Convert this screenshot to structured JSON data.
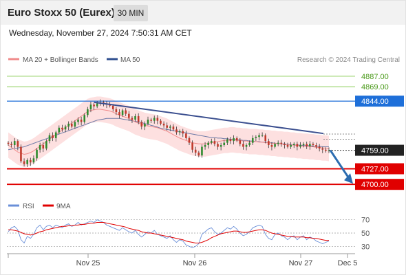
{
  "header": {
    "title": "Euro Stoxx 50 (Eurex)",
    "timeframe": "30 MIN",
    "datetime": "Wednesday, November 27, 2024 7:50:31 AM CET"
  },
  "legend": {
    "ma20": "MA 20 + Bollinger Bands",
    "ma50": "MA 50",
    "credit": "Research © 2024 Trading Central"
  },
  "colors": {
    "up": "#2e8b2e",
    "down": "#c0392b",
    "ma20": "#f08a8a",
    "bollinger_fill": "#fde0e0",
    "ma50": "#2f4f8f",
    "resistance_green": "#8ecf5a",
    "pivot_blue": "#1e6fd9",
    "support_red": "#e00000",
    "trendline": "#3b4f8f",
    "arrow": "#2b6cb0",
    "rsi": "#6a8fd8",
    "rsi_ma": "#e00000"
  },
  "chart_data": [
    {
      "type": "candlestick",
      "title": "",
      "x_ticks": [
        "Nov 25",
        "Nov 26",
        "Nov 27",
        "Dec 5"
      ],
      "ylim": [
        4680,
        4900
      ],
      "last_price": 4759.0,
      "levels": [
        {
          "label": "4887.00",
          "value": 4887.0,
          "kind": "resistance"
        },
        {
          "label": "4869.00",
          "value": 4869.0,
          "kind": "resistance"
        },
        {
          "label": "4844.00",
          "value": 4844.0,
          "kind": "pivot"
        },
        {
          "label": "4727.00",
          "value": 4727.0,
          "kind": "support"
        },
        {
          "label": "4700.00",
          "value": 4700.0,
          "kind": "support"
        }
      ],
      "last_label": "4759.00",
      "series": [
        {
          "name": "MA 20 + Bollinger Bands"
        },
        {
          "name": "MA 50"
        }
      ],
      "close": [
        4770,
        4768,
        4775,
        4765,
        4740,
        4735,
        4742,
        4738,
        4745,
        4760,
        4768,
        4762,
        4775,
        4785,
        4780,
        4790,
        4798,
        4795,
        4800,
        4805,
        4800,
        4808,
        4812,
        4808,
        4820,
        4830,
        4838,
        4835,
        4840,
        4842,
        4840,
        4838,
        4836,
        4830,
        4825,
        4820,
        4828,
        4822,
        4815,
        4812,
        4818,
        4808,
        4800,
        4805,
        4812,
        4810,
        4815,
        4810,
        4805,
        4802,
        4798,
        4800,
        4795,
        4790,
        4792,
        4788,
        4780,
        4772,
        4760,
        4755,
        4750,
        4765,
        4768,
        4772,
        4775,
        4770,
        4765,
        4768,
        4772,
        4778,
        4775,
        4780,
        4776,
        4770,
        4765,
        4768,
        4772,
        4780,
        4782,
        4785,
        4785,
        4775,
        4768,
        4765,
        4770,
        4772,
        4770,
        4768,
        4765,
        4768,
        4770,
        4765,
        4768,
        4770,
        4766,
        4770,
        4768,
        4765,
        4762,
        4760,
        4758,
        4759
      ],
      "ma20": [
        4768,
        4764,
        4760,
        4756,
        4754,
        4752,
        4753,
        4755,
        4758,
        4762,
        4766,
        4770,
        4774,
        4778,
        4782,
        4786,
        4790,
        4794,
        4798,
        4802,
        4806,
        4810,
        4814,
        4818,
        4822,
        4826,
        4828,
        4829,
        4830,
        4830,
        4829,
        4828,
        4827,
        4825,
        4822,
        4820,
        4818,
        4816,
        4814,
        4811,
        4808,
        4806,
        4804,
        4802,
        4801,
        4800,
        4799,
        4798,
        4796,
        4794,
        4792,
        4789,
        4786,
        4783,
        4780,
        4778,
        4776,
        4774,
        4772,
        4771,
        4770,
        4770,
        4770,
        4771,
        4772,
        4773,
        4774,
        4775,
        4776,
        4776,
        4777,
        4777,
        4776,
        4776,
        4775,
        4775,
        4774,
        4774,
        4774,
        4773,
        4773,
        4772,
        4772,
        4771,
        4771,
        4770,
        4770,
        4769,
        4769,
        4768,
        4768,
        4767,
        4767,
        4766,
        4766,
        4765,
        4765,
        4764,
        4764,
        4763,
        4763,
        4762
      ],
      "ma50": [
        4760,
        4761,
        4762,
        4763,
        4764,
        4765,
        4767,
        4769,
        4771,
        4773,
        4775,
        4777,
        4779,
        4781,
        4783,
        4785,
        4787,
        4789,
        4791,
        4793,
        4795,
        4797,
        4799,
        4801,
        4803,
        4805,
        4807,
        4809,
        4811,
        4812,
        4813,
        4814,
        4814,
        4814,
        4814,
        4814,
        4813,
        4812,
        4811,
        4810,
        4809,
        4808,
        4807,
        4805,
        4804,
        4802,
        4801,
        4799,
        4797,
        4796,
        4795,
        4794,
        4793,
        4792,
        4791,
        4790,
        4789,
        4788,
        4787,
        4786,
        4785,
        4784,
        4783,
        4782,
        4781,
        4781,
        4780,
        4780,
        4779,
        4779,
        4778,
        4778,
        4777,
        4777,
        4776,
        4776,
        4775,
        4775,
        4774,
        4774,
        4773,
        4773,
        4772,
        4772,
        4771,
        4771,
        4770,
        4770,
        4769,
        4769,
        4768,
        4768,
        4768,
        4767,
        4767,
        4767,
        4766,
        4766,
        4766,
        4765,
        4765,
        4765
      ],
      "band_width": 22,
      "trendline": [
        {
          "x": "start",
          "y": 4842
        },
        {
          "x": "end",
          "y": 4788
        }
      ],
      "projection": {
        "from": 4759,
        "to": 4700
      }
    },
    {
      "type": "line",
      "title": "",
      "legend": [
        "RSI",
        "9MA"
      ],
      "y_ticks": [
        "70",
        "50",
        "30"
      ],
      "ylim": [
        20,
        80
      ],
      "series": [
        {
          "name": "RSI",
          "values": [
            52,
            58,
            60,
            55,
            40,
            35,
            45,
            42,
            48,
            58,
            62,
            55,
            60,
            62,
            58,
            62,
            60,
            58,
            62,
            64,
            60,
            62,
            66,
            62,
            64,
            66,
            68,
            66,
            70,
            68,
            66,
            62,
            60,
            58,
            56,
            54,
            58,
            55,
            52,
            50,
            54,
            48,
            44,
            48,
            52,
            50,
            54,
            48,
            46,
            44,
            42,
            46,
            40,
            36,
            40,
            38,
            32,
            30,
            28,
            30,
            34,
            48,
            52,
            56,
            58,
            52,
            48,
            50,
            54,
            58,
            56,
            60,
            56,
            50,
            46,
            48,
            52,
            58,
            60,
            62,
            60,
            48,
            42,
            40,
            48,
            50,
            46,
            44,
            40,
            44,
            46,
            40,
            44,
            46,
            40,
            44,
            42,
            38,
            36,
            34,
            36,
            38
          ]
        },
        {
          "name": "9MA",
          "values": [
            55,
            55,
            54,
            53,
            51,
            49,
            48,
            47,
            48,
            50,
            52,
            53,
            55,
            56,
            57,
            58,
            59,
            60,
            60,
            61,
            61,
            62,
            62,
            63,
            63,
            64,
            65,
            65,
            66,
            66,
            66,
            65,
            64,
            63,
            62,
            61,
            60,
            59,
            57,
            56,
            55,
            54,
            52,
            51,
            50,
            50,
            49,
            48,
            47,
            46,
            45,
            44,
            43,
            42,
            41,
            40,
            38,
            37,
            36,
            35,
            35,
            36,
            38,
            40,
            43,
            45,
            47,
            49,
            50,
            51,
            52,
            53,
            53,
            52,
            51,
            51,
            52,
            53,
            54,
            55,
            55,
            54,
            52,
            50,
            49,
            48,
            47,
            46,
            45,
            45,
            44,
            44,
            44,
            44,
            43,
            43,
            42,
            42,
            41,
            40,
            39,
            39
          ]
        }
      ]
    }
  ]
}
